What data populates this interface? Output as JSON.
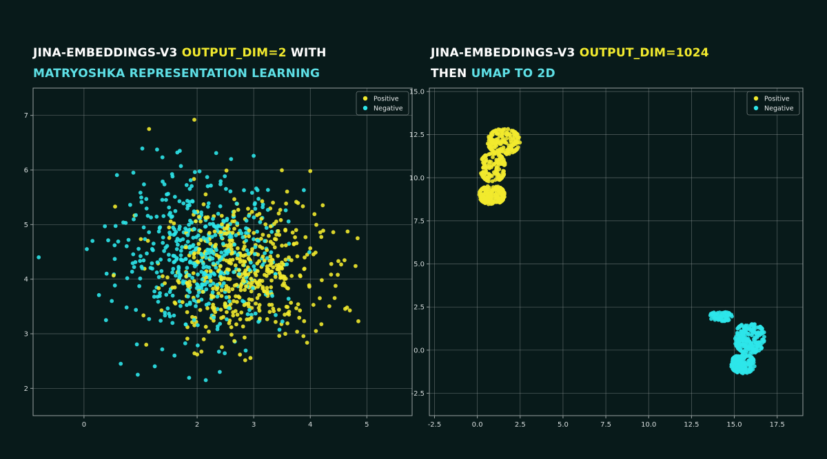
{
  "headings": {
    "left": {
      "line1_white": "JINA-EMBEDDINGS-V3",
      "line1_yellow": "OUTPUT_DIM=2",
      "line1_white_after": "WITH",
      "line2_cyan": "MATRYOSHKA REPRESENTATION LEARNING"
    },
    "right": {
      "line1_white": "JINA-EMBEDDINGS-V3",
      "line1_yellow": "OUTPUT_DIM=1024",
      "line2_white": "THEN",
      "line2_cyan": "UMAP TO 2D"
    }
  },
  "colors": {
    "background": "#081a1a",
    "positive": "#f2ea2e",
    "negative": "#2ee6ea",
    "grid": "#9aa3a3"
  },
  "chart_data": [
    {
      "type": "scatter",
      "title": "",
      "xlabel": "",
      "ylabel": "",
      "xlim": [
        -0.9,
        5.8
      ],
      "ylim": [
        1.5,
        7.5
      ],
      "xticks": [
        0,
        2,
        3,
        4,
        5
      ],
      "yticks": [
        2,
        3,
        4,
        5,
        6,
        7
      ],
      "grid": true,
      "legend": {
        "position": "top-right",
        "entries": [
          "Positive",
          "Negative"
        ]
      },
      "series": [
        {
          "name": "Positive",
          "color": "#f2ea2e",
          "distribution": {
            "type": "gaussian",
            "count": 500,
            "center": [
              2.8,
              4.15
            ],
            "std": [
              0.7,
              0.62
            ]
          },
          "points": [
            [
              1.15,
              6.75
            ],
            [
              1.95,
              6.92
            ],
            [
              4.0,
              5.98
            ],
            [
              0.55,
              5.33
            ],
            [
              4.8,
              4.24
            ],
            [
              4.85,
              3.23
            ],
            [
              4.65,
              3.48
            ],
            [
              4.1,
              3.05
            ],
            [
              2.0,
              2.62
            ],
            [
              1.1,
              2.8
            ]
          ]
        },
        {
          "name": "Negative",
          "color": "#2ee6ea",
          "distribution": {
            "type": "gaussian",
            "count": 500,
            "center": [
              2.1,
              4.45
            ],
            "std": [
              0.72,
              0.68
            ]
          },
          "points": [
            [
              -0.8,
              4.4
            ],
            [
              0.05,
              4.55
            ],
            [
              0.15,
              4.7
            ],
            [
              0.95,
              2.25
            ],
            [
              0.65,
              2.45
            ],
            [
              1.6,
              2.6
            ],
            [
              2.4,
              2.3
            ],
            [
              2.6,
              6.2
            ],
            [
              1.65,
              6.32
            ],
            [
              3.0,
              6.26
            ],
            [
              0.4,
              4.1
            ]
          ]
        }
      ]
    },
    {
      "type": "scatter",
      "title": "",
      "xlabel": "",
      "ylabel": "",
      "xlim": [
        -2.8,
        19.0
      ],
      "ylim": [
        -3.8,
        15.2
      ],
      "xticks": [
        -2.5,
        0.0,
        2.5,
        5.0,
        7.5,
        10.0,
        12.5,
        15.0,
        17.5
      ],
      "yticks": [
        -2.5,
        0.0,
        2.5,
        5.0,
        7.5,
        10.0,
        12.5,
        15.0
      ],
      "grid": true,
      "legend": {
        "position": "top-right",
        "entries": [
          "Positive",
          "Negative"
        ]
      },
      "series": [
        {
          "name": "Positive",
          "color": "#f2ea2e",
          "clusters": [
            {
              "count": 170,
              "center": [
                1.55,
                12.1
              ],
              "spread": [
                0.95,
                0.75
              ]
            },
            {
              "count": 140,
              "center": [
                0.9,
                10.6
              ],
              "spread": [
                0.75,
                0.85
              ]
            },
            {
              "count": 170,
              "center": [
                0.85,
                9.0
              ],
              "spread": [
                0.75,
                0.55
              ]
            }
          ]
        },
        {
          "name": "Negative",
          "color": "#2ee6ea",
          "clusters": [
            {
              "count": 60,
              "center": [
                14.2,
                1.95
              ],
              "spread": [
                0.7,
                0.28
              ]
            },
            {
              "count": 220,
              "center": [
                15.9,
                0.7
              ],
              "spread": [
                0.9,
                0.9
              ]
            },
            {
              "count": 170,
              "center": [
                15.5,
                -0.8
              ],
              "spread": [
                0.7,
                0.55
              ]
            }
          ]
        }
      ]
    }
  ]
}
